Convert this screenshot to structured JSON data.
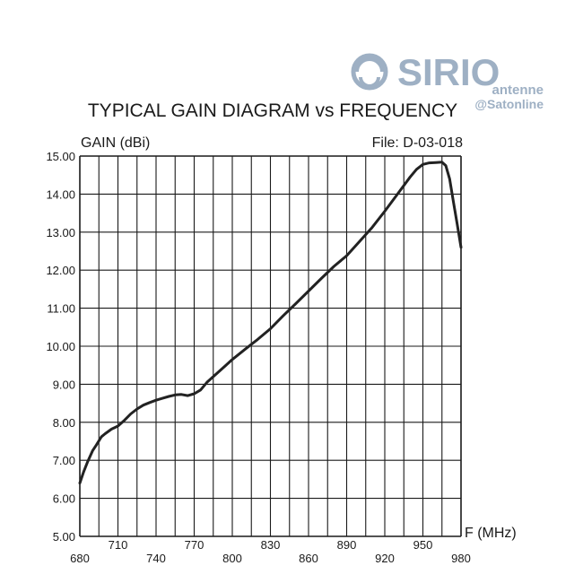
{
  "logo": {
    "brand": "SIRIO",
    "sub": "antenne",
    "watermark": "@Satonline",
    "color": "#9eb0c4"
  },
  "chart_data": {
    "type": "line",
    "title": "TYPICAL GAIN DIAGRAM vs FREQUENCY",
    "ylabel": "GAIN (dBi)",
    "xlabel": "F (MHz)",
    "file_label": "File:  D-03-018",
    "xlim": [
      680,
      980
    ],
    "ylim": [
      5.0,
      15.0
    ],
    "x_major_ticks": [
      680,
      710,
      740,
      770,
      800,
      830,
      860,
      890,
      920,
      950,
      980
    ],
    "x_tick_labels_lower": [
      "680",
      "740",
      "800",
      "860",
      "920",
      "980"
    ],
    "x_tick_labels_upper": [
      "710",
      "770",
      "830",
      "890",
      "950"
    ],
    "x_grid_step": 15,
    "y_ticks": [
      5,
      6,
      7,
      8,
      9,
      10,
      11,
      12,
      13,
      14,
      15
    ],
    "y_tick_labels": [
      "5.00",
      "6.00",
      "7.00",
      "8.00",
      "9.00",
      "10.00",
      "11.00",
      "12.00",
      "13.00",
      "14.00",
      "15.00"
    ],
    "grid": true,
    "line_color": "#222222",
    "series": [
      {
        "name": "Gain",
        "x": [
          680,
          683,
          686,
          690,
          693,
          697,
          700,
          705,
          710,
          715,
          720,
          725,
          730,
          735,
          740,
          745,
          750,
          755,
          760,
          765,
          770,
          775,
          780,
          785,
          790,
          795,
          800,
          810,
          820,
          830,
          840,
          850,
          860,
          870,
          880,
          890,
          900,
          910,
          920,
          930,
          940,
          945,
          950,
          955,
          960,
          965,
          968,
          971,
          974,
          977,
          980
        ],
        "y": [
          6.4,
          6.7,
          6.95,
          7.25,
          7.4,
          7.62,
          7.7,
          7.82,
          7.9,
          8.05,
          8.22,
          8.35,
          8.45,
          8.52,
          8.58,
          8.63,
          8.68,
          8.72,
          8.73,
          8.7,
          8.75,
          8.85,
          9.05,
          9.2,
          9.35,
          9.5,
          9.65,
          9.92,
          10.18,
          10.46,
          10.8,
          11.12,
          11.45,
          11.78,
          12.1,
          12.38,
          12.75,
          13.12,
          13.55,
          14.0,
          14.45,
          14.65,
          14.78,
          14.82,
          14.83,
          14.84,
          14.75,
          14.4,
          13.8,
          13.2,
          12.6
        ]
      }
    ]
  }
}
